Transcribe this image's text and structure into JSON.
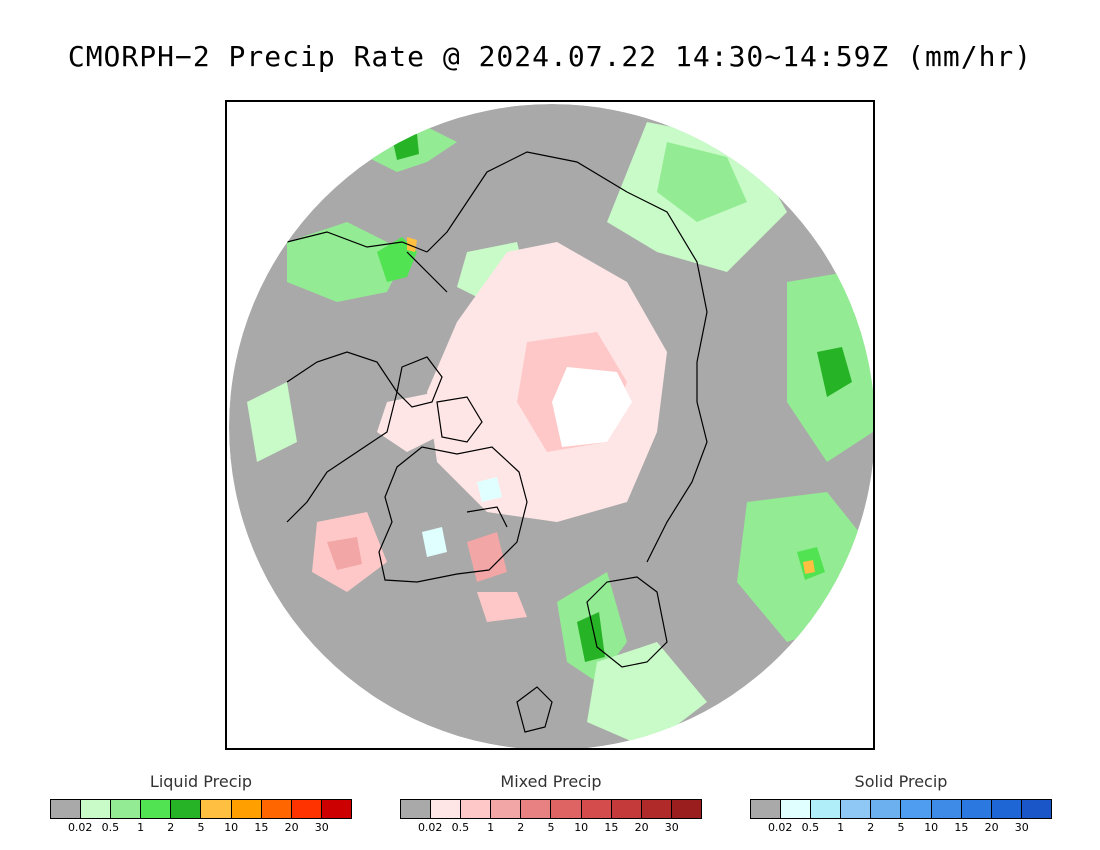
{
  "title": "CMORPH−2 Precip Rate @ 2024.07.22 14:30~14:59Z (mm/hr)",
  "map": {
    "colors": {
      "background": "#a9a9a9",
      "outside": "#ffffff",
      "no_data_pole": "#ffffff",
      "coastline": "#000000"
    }
  },
  "legends": [
    {
      "title": "Liquid Precip",
      "colors": [
        "#a9a9a9",
        "#c8fbc8",
        "#93ec93",
        "#52e352",
        "#26b326",
        "#ffbf40",
        "#ff9f00",
        "#ff6600",
        "#ff3300",
        "#cc0000"
      ],
      "ticks": [
        "0.02",
        "0.5",
        "1",
        "2",
        "5",
        "10",
        "15",
        "20",
        "30"
      ]
    },
    {
      "title": "Mixed Precip",
      "colors": [
        "#a9a9a9",
        "#ffe6e6",
        "#ffc8c8",
        "#f2a6a6",
        "#e88282",
        "#de6464",
        "#d44c4c",
        "#c43a3a",
        "#b02a2a",
        "#9a1e1e"
      ],
      "ticks": [
        "0.02",
        "0.5",
        "1",
        "2",
        "5",
        "10",
        "15",
        "20",
        "30"
      ]
    },
    {
      "title": "Solid Precip",
      "colors": [
        "#a9a9a9",
        "#e0ffff",
        "#b0eefa",
        "#8fc8f4",
        "#6cb0f0",
        "#4e9df0",
        "#3d8be6",
        "#2b78e0",
        "#1e66d6",
        "#1a56c8"
      ],
      "ticks": [
        "0.02",
        "0.5",
        "1",
        "2",
        "5",
        "10",
        "15",
        "20",
        "30"
      ]
    }
  ]
}
